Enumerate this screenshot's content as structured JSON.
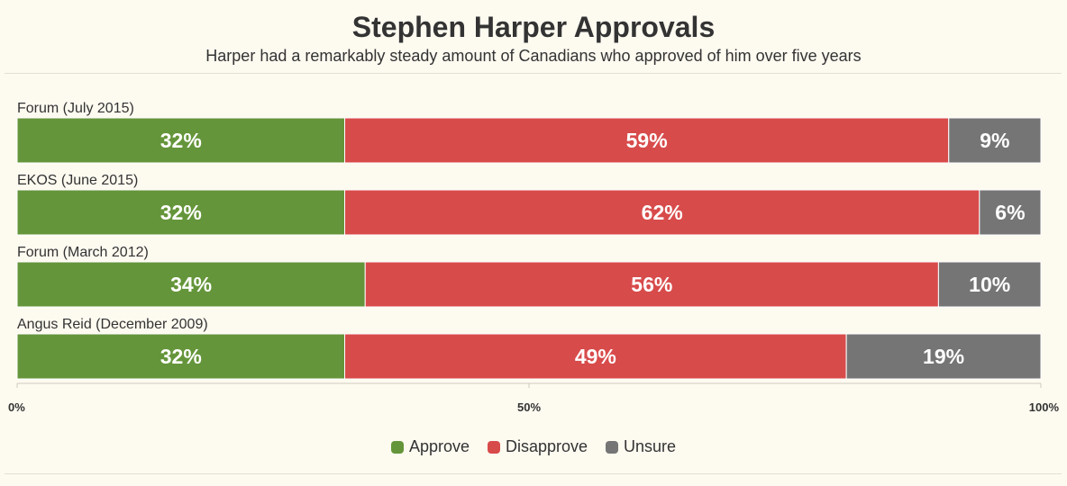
{
  "chart_data": {
    "type": "bar",
    "orientation": "horizontal",
    "stacked": true,
    "title": "Stephen Harper Approvals",
    "subtitle": "Harper had a remarkably steady amount of Canadians who approved of him over five years",
    "categories": [
      "Forum (July 2015)",
      "EKOS (June 2015)",
      "Forum (March 2012)",
      "Angus Reid (December 2009)"
    ],
    "series": [
      {
        "name": "Approve",
        "values": [
          32,
          32,
          34,
          32
        ],
        "labels": [
          "32%",
          "32%",
          "34%",
          "32%"
        ],
        "color": "#65953a"
      },
      {
        "name": "Disapprove",
        "values": [
          59,
          62,
          56,
          49
        ],
        "labels": [
          "59%",
          "62%",
          "56%",
          "49%"
        ],
        "color": "#d84b4b"
      },
      {
        "name": "Unsure",
        "values": [
          9,
          6,
          10,
          19
        ],
        "labels": [
          "9%",
          "6%",
          "10%",
          "19%"
        ],
        "color": "#757575"
      }
    ],
    "xlim": [
      0,
      100
    ],
    "xticks": [
      {
        "value": 0,
        "label": "0%"
      },
      {
        "value": 50,
        "label": "50%"
      },
      {
        "value": 100,
        "label": "100%"
      }
    ],
    "legend_position": "bottom",
    "grid": false
  }
}
